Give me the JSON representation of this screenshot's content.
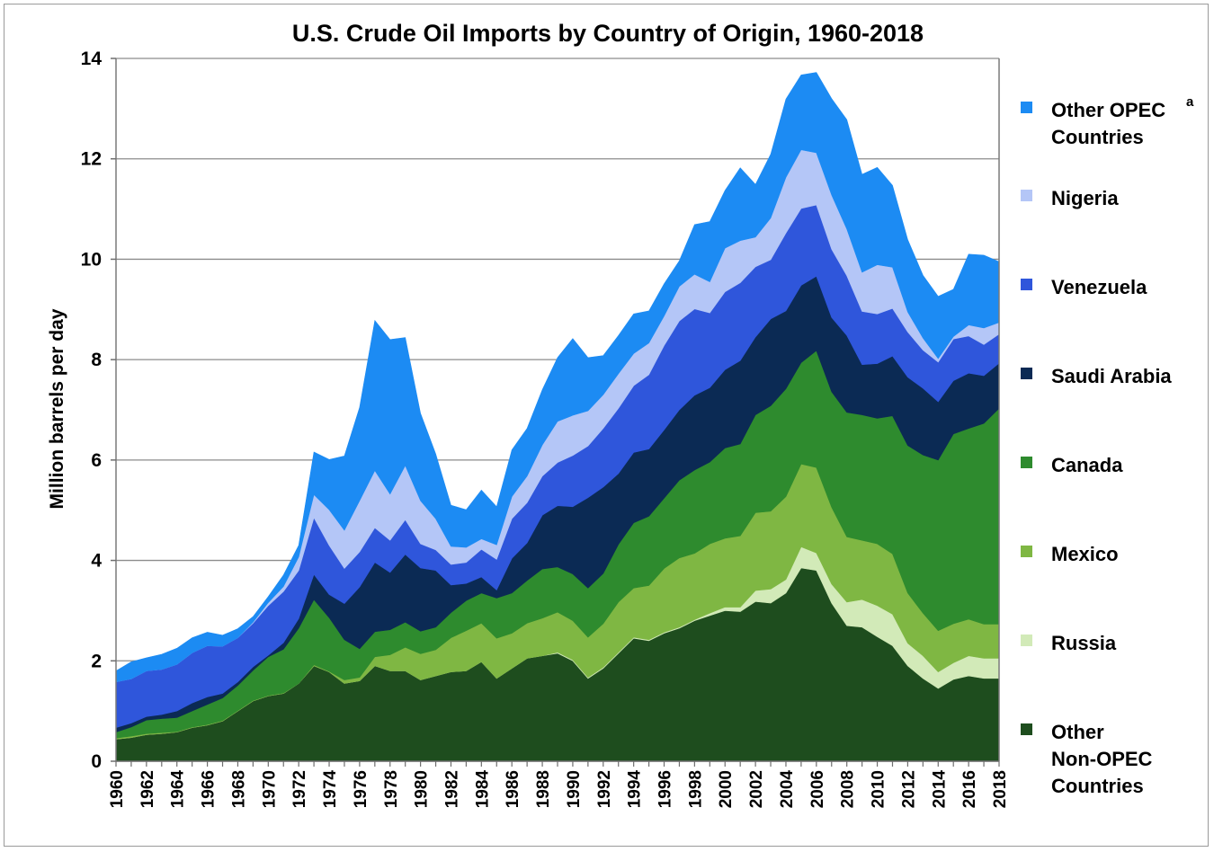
{
  "chart_data": {
    "type": "area",
    "stacked": true,
    "title": "U.S. Crude Oil Imports by Country of Origin, 1960-2018",
    "ylabel": "Million barrels per day",
    "xlabel": "",
    "ylim": [
      0,
      14
    ],
    "xlim": [
      1960,
      2018
    ],
    "yticks": [
      "0",
      "2",
      "4",
      "6",
      "8",
      "10",
      "12",
      "14"
    ],
    "xticks": [
      "1960",
      "1962",
      "1964",
      "1966",
      "1968",
      "1970",
      "1972",
      "1974",
      "1976",
      "1978",
      "1980",
      "1982",
      "1984",
      "1986",
      "1988",
      "1990",
      "1992",
      "1994",
      "1996",
      "1998",
      "2000",
      "2002",
      "2004",
      "2006",
      "2008",
      "2010",
      "2012",
      "2014",
      "2016",
      "2018"
    ],
    "grid": "horizontal",
    "legend_position": "right",
    "x": [
      1960,
      1961,
      1962,
      1963,
      1964,
      1965,
      1966,
      1967,
      1968,
      1969,
      1970,
      1971,
      1972,
      1973,
      1974,
      1975,
      1976,
      1977,
      1978,
      1979,
      1980,
      1981,
      1982,
      1983,
      1984,
      1985,
      1986,
      1987,
      1988,
      1989,
      1990,
      1991,
      1992,
      1993,
      1994,
      1995,
      1996,
      1997,
      1998,
      1999,
      2000,
      2001,
      2002,
      2003,
      2004,
      2005,
      2006,
      2007,
      2008,
      2009,
      2010,
      2011,
      2012,
      2013,
      2014,
      2015,
      2016,
      2017,
      2018
    ],
    "series": [
      {
        "name": "Other Non-OPEC Countries",
        "color": "#1e4d1e",
        "values": [
          0.44,
          0.47,
          0.53,
          0.55,
          0.58,
          0.67,
          0.72,
          0.8,
          1.0,
          1.2,
          1.3,
          1.35,
          1.55,
          1.9,
          1.78,
          1.55,
          1.6,
          1.9,
          1.8,
          1.8,
          1.62,
          1.7,
          1.78,
          1.8,
          1.98,
          1.65,
          1.85,
          2.05,
          2.1,
          2.15,
          2.0,
          1.65,
          1.85,
          2.15,
          2.45,
          2.4,
          2.55,
          2.65,
          2.8,
          2.9,
          3.0,
          2.98,
          3.18,
          3.15,
          3.35,
          3.85,
          3.8,
          3.15,
          2.7,
          2.67,
          2.48,
          2.3,
          1.9,
          1.65,
          1.45,
          1.63,
          1.7,
          1.65,
          1.65
        ]
      },
      {
        "name": "Russia",
        "color": "#d2eab8",
        "values": [
          0.0,
          0.0,
          0.0,
          0.0,
          0.0,
          0.0,
          0.0,
          0.0,
          0.0,
          0.0,
          0.0,
          0.0,
          0.0,
          0.0,
          0.0,
          0.0,
          0.0,
          0.0,
          0.0,
          0.0,
          0.0,
          0.0,
          0.0,
          0.0,
          0.0,
          0.0,
          0.0,
          0.0,
          0.0,
          0.02,
          0.02,
          0.02,
          0.02,
          0.02,
          0.02,
          0.02,
          0.02,
          0.02,
          0.02,
          0.05,
          0.07,
          0.09,
          0.22,
          0.28,
          0.27,
          0.42,
          0.35,
          0.38,
          0.47,
          0.55,
          0.62,
          0.63,
          0.45,
          0.45,
          0.33,
          0.33,
          0.4,
          0.4,
          0.4
        ]
      },
      {
        "name": "Mexico",
        "color": "#7fb743",
        "values": [
          0.02,
          0.03,
          0.02,
          0.02,
          0.01,
          0.01,
          0.01,
          0.01,
          0.01,
          0.01,
          0.01,
          0.01,
          0.0,
          0.02,
          0.01,
          0.07,
          0.07,
          0.18,
          0.32,
          0.47,
          0.52,
          0.52,
          0.68,
          0.8,
          0.77,
          0.8,
          0.7,
          0.7,
          0.75,
          0.8,
          0.78,
          0.8,
          0.87,
          1.0,
          0.98,
          1.08,
          1.27,
          1.38,
          1.32,
          1.38,
          1.37,
          1.42,
          1.55,
          1.55,
          1.65,
          1.65,
          1.7,
          1.53,
          1.3,
          1.18,
          1.23,
          1.2,
          1.0,
          0.85,
          0.82,
          0.78,
          0.73,
          0.68,
          0.68
        ]
      },
      {
        "name": "Canada",
        "color": "#2e8b2e",
        "values": [
          0.12,
          0.18,
          0.27,
          0.28,
          0.28,
          0.32,
          0.4,
          0.45,
          0.5,
          0.6,
          0.77,
          0.87,
          1.1,
          1.3,
          1.07,
          0.8,
          0.57,
          0.5,
          0.5,
          0.5,
          0.45,
          0.45,
          0.5,
          0.6,
          0.6,
          0.8,
          0.8,
          0.85,
          0.98,
          0.9,
          0.93,
          0.98,
          1.0,
          1.15,
          1.3,
          1.38,
          1.4,
          1.55,
          1.66,
          1.63,
          1.8,
          1.83,
          1.95,
          2.1,
          2.15,
          2.02,
          2.33,
          2.3,
          2.48,
          2.5,
          2.5,
          2.75,
          2.94,
          3.15,
          3.4,
          3.78,
          3.8,
          4.0,
          4.3
        ]
      },
      {
        "name": "Saudi Arabia",
        "color": "#0b2a54",
        "values": [
          0.09,
          0.08,
          0.07,
          0.08,
          0.13,
          0.16,
          0.15,
          0.09,
          0.07,
          0.07,
          0.03,
          0.13,
          0.19,
          0.5,
          0.46,
          0.72,
          1.23,
          1.38,
          1.14,
          1.35,
          1.26,
          1.13,
          0.55,
          0.34,
          0.32,
          0.16,
          0.69,
          0.75,
          1.07,
          1.22,
          1.34,
          1.8,
          1.72,
          1.41,
          1.4,
          1.34,
          1.36,
          1.4,
          1.49,
          1.48,
          1.56,
          1.66,
          1.55,
          1.73,
          1.55,
          1.54,
          1.48,
          1.48,
          1.53,
          1.0,
          1.09,
          1.19,
          1.36,
          1.33,
          1.16,
          1.06,
          1.1,
          0.95,
          0.9
        ]
      },
      {
        "name": "Venezuela",
        "color": "#2f56db",
        "values": [
          0.91,
          0.88,
          0.91,
          0.9,
          0.93,
          1.0,
          1.02,
          0.94,
          0.88,
          0.87,
          0.99,
          1.02,
          0.96,
          1.13,
          0.98,
          0.7,
          0.7,
          0.69,
          0.64,
          0.69,
          0.48,
          0.41,
          0.41,
          0.42,
          0.55,
          0.61,
          0.79,
          0.8,
          0.78,
          0.86,
          1.02,
          1.03,
          1.17,
          1.3,
          1.33,
          1.48,
          1.68,
          1.77,
          1.72,
          1.49,
          1.55,
          1.55,
          1.4,
          1.18,
          1.55,
          1.53,
          1.42,
          1.36,
          1.19,
          1.06,
          0.99,
          0.95,
          0.9,
          0.76,
          0.79,
          0.83,
          0.74,
          0.62,
          0.58
        ]
      },
      {
        "name": "Nigeria",
        "color": "#b4c6f7",
        "values": [
          0.0,
          0.0,
          0.0,
          0.0,
          0.0,
          0.0,
          0.0,
          0.0,
          0.0,
          0.02,
          0.06,
          0.1,
          0.27,
          0.46,
          0.71,
          0.76,
          1.02,
          1.14,
          0.92,
          1.08,
          0.86,
          0.62,
          0.36,
          0.3,
          0.21,
          0.29,
          0.44,
          0.53,
          0.62,
          0.82,
          0.8,
          0.7,
          0.67,
          0.69,
          0.64,
          0.63,
          0.59,
          0.69,
          0.69,
          0.62,
          0.87,
          0.84,
          0.59,
          0.83,
          1.11,
          1.17,
          1.04,
          1.08,
          0.93,
          0.78,
          0.98,
          0.82,
          0.4,
          0.24,
          0.07,
          0.05,
          0.22,
          0.33,
          0.23
        ]
      },
      {
        "name": "Other OPEC Countries",
        "color": "#1c8bf3",
        "values": [
          0.22,
          0.34,
          0.26,
          0.3,
          0.32,
          0.3,
          0.27,
          0.22,
          0.18,
          0.11,
          0.12,
          0.23,
          0.23,
          0.85,
          1.0,
          1.48,
          1.86,
          2.99,
          3.08,
          2.55,
          1.74,
          1.29,
          0.82,
          0.75,
          0.97,
          0.76,
          0.93,
          0.95,
          1.1,
          1.27,
          1.53,
          1.06,
          0.78,
          0.76,
          0.79,
          0.64,
          0.64,
          0.51,
          0.99,
          1.2,
          1.15,
          1.45,
          1.05,
          1.27,
          1.56,
          1.49,
          1.6,
          1.92,
          2.18,
          1.95,
          1.94,
          1.63,
          1.44,
          1.25,
          1.24,
          0.94,
          1.41,
          1.45,
          1.21
        ]
      }
    ]
  }
}
